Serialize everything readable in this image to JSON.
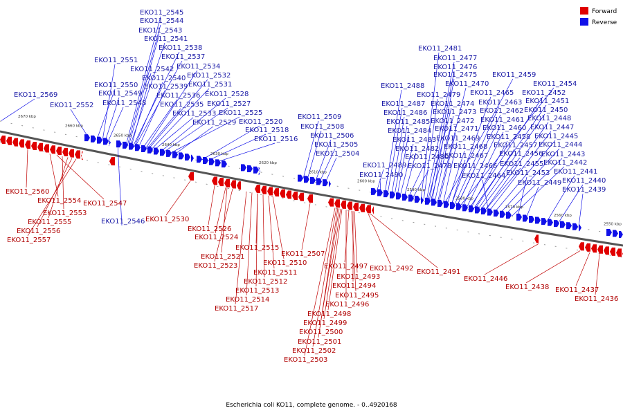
{
  "caption": "Escherichia coli KO11, complete genome. - 0..4920168",
  "legend": [
    {
      "label": "Forward",
      "color": "#e00000"
    },
    {
      "label": "Reverse",
      "color": "#1010e8"
    }
  ],
  "colors": {
    "forward": "#e00000",
    "reverse": "#1010e8",
    "backbone": "#555555"
  },
  "scale_ticks": [
    "2670 kbp",
    "2660 kbp",
    "2650 kbp",
    "2640 kbp",
    "2630 kbp",
    "2620 kbp",
    "2610 kbp",
    "2600 kbp",
    "2590 kbp",
    "2580 kbp",
    "2570 kbp",
    "2560 kbp",
    "2550 kbp"
  ],
  "genes_reverse": [
    "EKO11_2545",
    "EKO11_2544",
    "EKO11_2543",
    "EKO11_2541",
    "EKO11_2538",
    "EKO11_2537",
    "EKO11_2551",
    "EKO11_2542",
    "EKO11_2534",
    "EKO11_2540",
    "EKO11_2532",
    "EKO11_2550",
    "EKO11_2539",
    "EKO11_2531",
    "EKO11_2549",
    "EKO11_2536",
    "EKO11_2528",
    "EKO11_2569",
    "EKO11_2548",
    "EKO11_2535",
    "EKO11_2527",
    "EKO11_2552",
    "EKO11_2533",
    "EKO11_2525",
    "EKO11_2529",
    "EKO11_2520",
    "EKO11_2518",
    "EKO11_2516",
    "EKO11_2509",
    "EKO11_2508",
    "EKO11_2506",
    "EKO11_2505",
    "EKO11_2504",
    "EKO11_2481",
    "EKO11_2477",
    "EKO11_2476",
    "EKO11_2475",
    "EKO11_2459",
    "EKO11_2470",
    "EKO11_2454",
    "EKO11_2488",
    "EKO11_2479",
    "EKO11_2465",
    "EKO11_2452",
    "EKO11_2487",
    "EKO11_2474",
    "EKO11_2463",
    "EKO11_2451",
    "EKO11_2486",
    "EKO11_2473",
    "EKO11_2462",
    "EKO11_2450",
    "EKO11_2485",
    "EKO11_2472",
    "EKO11_2461",
    "EKO11_2448",
    "EKO11_2484",
    "EKO11_2471",
    "EKO11_2460",
    "EKO11_2447",
    "EKO11_2483",
    "EKO11_2469",
    "EKO11_2458",
    "EKO11_2445",
    "EKO11_2482",
    "EKO11_2468",
    "EKO11_2457",
    "EKO11_2444",
    "EKO11_2480",
    "EKO11_2467",
    "EKO11_2456",
    "EKO11_2443",
    "EKO11_2489",
    "EKO11_2478",
    "EKO11_2466",
    "EKO11_2455",
    "EKO11_2442",
    "EKO11_2490",
    "EKO11_2464",
    "EKO11_2453",
    "EKO11_2441",
    "EKO11_2449",
    "EKO11_2440",
    "EKO11_2439",
    "EKO11_2546"
  ],
  "genes_forward": [
    "EKO11_2560",
    "EKO11_2554",
    "EKO11_2547",
    "EKO11_2553",
    "EKO11_2555",
    "EKO11_2556",
    "EKO11_2557",
    "EKO11_2530",
    "EKO11_2526",
    "EKO11_2524",
    "EKO11_2515",
    "EKO11_2521",
    "EKO11_2523",
    "EKO11_2507",
    "EKO11_2510",
    "EKO11_2511",
    "EKO11_2512",
    "EKO11_2513",
    "EKO11_2514",
    "EKO11_2517",
    "EKO11_2497",
    "EKO11_2492",
    "EKO11_2491",
    "EKO11_2493",
    "EKO11_2494",
    "EKO11_2495",
    "EKO11_2496",
    "EKO11_2498",
    "EKO11_2499",
    "EKO11_2500",
    "EKO11_2501",
    "EKO11_2502",
    "EKO11_2503",
    "EKO11_2446",
    "EKO11_2438",
    "EKO11_2437",
    "EKO11_2436"
  ]
}
